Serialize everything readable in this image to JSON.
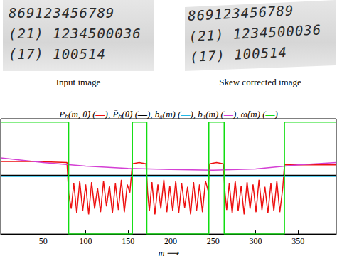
{
  "panels": [
    {
      "caption": "Input image",
      "lines": [
        "869123456789",
        "(21) 1234500036",
        "(17) 100514"
      ]
    },
    {
      "caption": "Skew corrected image",
      "lines": [
        "869123456789",
        "(21) 1234500036",
        "(17) 100514"
      ]
    }
  ],
  "chart_data": {
    "type": "line",
    "title": "Pₕ(m, θ̂) (—), P̄ₕ(θ̂) (—), b₀(m) (—), b₁(m) (—), ω̂(m) (—)",
    "x_label": "m ⟶",
    "xlim": [
      0,
      395
    ],
    "xticks": [
      50,
      100,
      150,
      200,
      250,
      300,
      350
    ],
    "ylim": [
      0,
      1
    ],
    "tick_labels": "x",
    "series": [
      {
        "color": "#ee1111",
        "x": [
          0,
          40,
          78,
          80,
          83,
          86,
          89.5,
          93,
          96.5,
          100,
          103.5,
          107,
          110.5,
          114,
          117.5,
          121,
          124.5,
          128,
          131.5,
          135,
          138.5,
          142,
          145.5,
          149,
          152,
          155,
          163,
          171,
          173,
          175,
          178,
          181.5,
          185,
          188.5,
          192,
          195.5,
          199,
          202.5,
          206,
          209.5,
          213,
          216.5,
          220,
          223.5,
          227,
          230.5,
          234,
          237.5,
          241,
          244,
          246,
          254,
          262,
          264,
          266,
          269,
          272.5,
          276,
          279.5,
          283,
          286.5,
          290,
          293.5,
          297,
          300.5,
          304,
          307.5,
          311,
          314.5,
          318,
          321.5,
          325,
          328.5,
          332,
          334,
          340,
          370,
          395
        ],
        "values": [
          0.63,
          0.63,
          0.62,
          0.35,
          0.22,
          0.44,
          0.18,
          0.46,
          0.2,
          0.43,
          0.17,
          0.45,
          0.22,
          0.4,
          0.19,
          0.46,
          0.24,
          0.42,
          0.18,
          0.44,
          0.21,
          0.47,
          0.19,
          0.43,
          0.36,
          0.61,
          0.62,
          0.61,
          0.35,
          0.2,
          0.45,
          0.17,
          0.43,
          0.22,
          0.47,
          0.19,
          0.42,
          0.2,
          0.46,
          0.18,
          0.44,
          0.23,
          0.41,
          0.17,
          0.45,
          0.2,
          0.43,
          0.19,
          0.46,
          0.38,
          0.61,
          0.62,
          0.61,
          0.36,
          0.21,
          0.44,
          0.18,
          0.46,
          0.2,
          0.42,
          0.17,
          0.45,
          0.22,
          0.43,
          0.19,
          0.47,
          0.21,
          0.41,
          0.18,
          0.44,
          0.2,
          0.46,
          0.19,
          0.4,
          0.6,
          0.6,
          0.6,
          0.6
        ]
      },
      {
        "color": "#000000",
        "x": [
          0,
          395
        ],
        "values": [
          0.51,
          0.51
        ]
      },
      {
        "color": "#22b8e6",
        "x": [
          0,
          395
        ],
        "values": [
          0.5,
          0.5
        ]
      },
      {
        "color": "#d43fd4",
        "x": [
          0,
          50,
          100,
          150,
          200,
          250,
          300,
          350,
          395
        ],
        "values": [
          0.66,
          0.62,
          0.59,
          0.57,
          0.56,
          0.555,
          0.565,
          0.6,
          0.62
        ]
      },
      {
        "color": "#11dd11",
        "x": [
          0,
          80,
          80,
          155,
          155,
          172,
          172,
          245,
          245,
          263,
          263,
          334,
          334,
          395
        ],
        "values": [
          0.97,
          0.97,
          0,
          0,
          0.97,
          0.97,
          0,
          0,
          0.97,
          0.97,
          0,
          0,
          0.97,
          0.97
        ]
      }
    ]
  }
}
